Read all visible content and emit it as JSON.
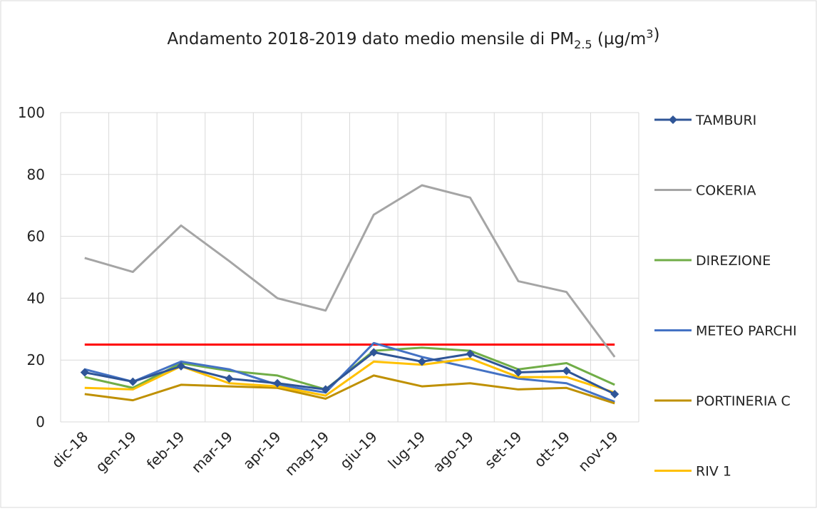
{
  "chart_data": {
    "type": "line",
    "title_parts": [
      "Andamento 2018-2019 dato medio mensile di PM",
      "2.5",
      " (µg/m",
      "3",
      ")"
    ],
    "categories": [
      "dic-18",
      "gen-19",
      "feb-19",
      "mar-19",
      "apr-19",
      "mag-19",
      "giu-19",
      "lug-19",
      "ago-19",
      "set-19",
      "ott-19",
      "nov-19"
    ],
    "series": [
      {
        "name": "TAMBURI",
        "color": "#2f5597",
        "marker": "diamond",
        "values": [
          16,
          13,
          18,
          14,
          12.5,
          10.5,
          22.5,
          19.5,
          22,
          16,
          16.5,
          9
        ]
      },
      {
        "name": "COKERIA",
        "color": "#a5a5a5",
        "values": [
          53,
          48.5,
          63.5,
          52,
          40,
          36,
          67,
          76.5,
          72.5,
          45.5,
          42,
          21
        ]
      },
      {
        "name": "DIREZIONE",
        "color": "#70ad47",
        "values": [
          14.5,
          11,
          19,
          16.5,
          15,
          10.5,
          23,
          24,
          23,
          17,
          19,
          12
        ]
      },
      {
        "name": "METEO PARCHI",
        "color": "#4472c4",
        "values": [
          17,
          13,
          19.5,
          17,
          12,
          9.5,
          25.5,
          21,
          17.5,
          14,
          12.5,
          6.5
        ]
      },
      {
        "name": "PORTINERIA C",
        "color": "#bf9000",
        "values": [
          9,
          7,
          12,
          11.5,
          11,
          7.5,
          15,
          11.5,
          12.5,
          10.5,
          11,
          6
        ]
      },
      {
        "name": "RIV 1",
        "color": "#ffc000",
        "values": [
          11,
          10.5,
          18,
          12.5,
          11.5,
          8.5,
          19.5,
          18.5,
          20.5,
          14.5,
          14.5,
          9.5
        ]
      }
    ],
    "reference_line": {
      "value": 25,
      "color": "#ff0000"
    },
    "ylim": [
      0,
      100
    ],
    "yticks": [
      0,
      20,
      40,
      60,
      80,
      100
    ],
    "grid": true,
    "legend": "right"
  }
}
